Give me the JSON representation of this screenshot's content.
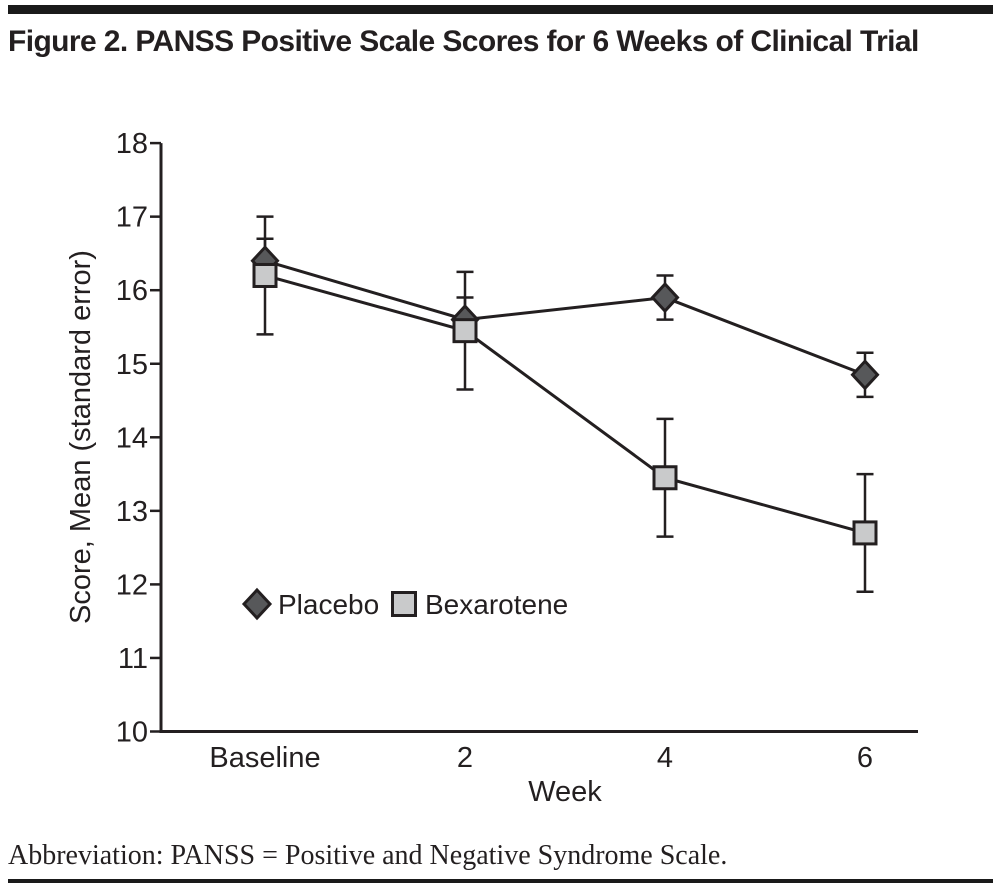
{
  "figure": {
    "title": "Figure 2. PANSS Positive Scale Scores for 6 Weeks of Clinical Trial",
    "footnote": "Abbreviation: PANSS = Positive and Negative Syndrome Scale."
  },
  "chart_data": {
    "type": "line",
    "categories": [
      "Baseline",
      "2",
      "4",
      "6"
    ],
    "xlabel": "Week",
    "ylabel": "Score, Mean (standard error)",
    "ylim": [
      10,
      18
    ],
    "y_ticks": [
      18,
      17,
      16,
      15,
      14,
      13,
      12,
      11,
      10
    ],
    "grid": false,
    "error_bars": "standard error, capped",
    "legend_position": "inside-lower-left",
    "line_color": "#231f20",
    "series": [
      {
        "name": "Placebo",
        "marker": "diamond",
        "marker_fill": "#57585a",
        "values": [
          16.4,
          15.6,
          15.9,
          14.85
        ],
        "standard_error": [
          0.3,
          0.3,
          0.3,
          0.3
        ]
      },
      {
        "name": "Bexarotene",
        "marker": "square",
        "marker_fill": "#c9cacb",
        "values": [
          16.2,
          15.45,
          13.45,
          12.7
        ],
        "standard_error": [
          0.8,
          0.8,
          0.8,
          0.8
        ]
      }
    ]
  },
  "colors": {
    "text": "#231f20",
    "rule_bars": "#1a1a1a",
    "background": "#ffffff"
  }
}
